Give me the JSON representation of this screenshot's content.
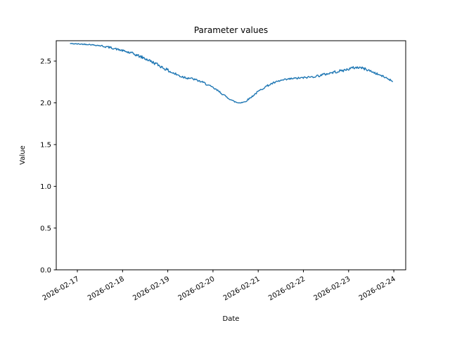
{
  "chart_data": {
    "type": "line",
    "title": "Parameter values",
    "xlabel": "Date",
    "ylabel": "Value",
    "grid": false,
    "legend": "none",
    "x_tick_labels": [
      "2026-02-17",
      "2026-02-18",
      "2026-02-19",
      "2026-02-20",
      "2026-02-21",
      "2026-02-22",
      "2026-02-23",
      "2026-02-24"
    ],
    "x_ticks_day_offset": [
      0,
      1,
      2,
      3,
      4,
      5,
      6,
      7
    ],
    "y_tick_labels": [
      "0.0",
      "0.5",
      "1.0",
      "1.5",
      "2.0",
      "2.5"
    ],
    "y_ticks": [
      0.0,
      0.5,
      1.0,
      1.5,
      2.0,
      2.5
    ],
    "xlim_day_offset": [
      -0.467,
      7.263
    ],
    "ylim": [
      0,
      2.744
    ],
    "x_tick_rotation_deg": 30,
    "axis_color": "#000000",
    "background_color": "#ffffff",
    "series": [
      {
        "name": "parameter-values",
        "color": "#1f77b4",
        "line_width": 1.4,
        "x_day_offset": [
          -0.155,
          0,
          0.25,
          0.5,
          0.75,
          1.0,
          1.25,
          1.5,
          1.75,
          1.9,
          2.1,
          2.3,
          2.5,
          2.65,
          2.8,
          3.0,
          3.15,
          3.3,
          3.45,
          3.55,
          3.7,
          3.85,
          4.0,
          4.15,
          4.3,
          4.5,
          4.75,
          5.0,
          5.25,
          5.5,
          5.7,
          5.9,
          6.1,
          6.25,
          6.4,
          6.55,
          6.7,
          6.85,
          6.97
        ],
        "values": [
          2.71,
          2.705,
          2.7,
          2.685,
          2.66,
          2.625,
          2.585,
          2.53,
          2.465,
          2.42,
          2.36,
          2.315,
          2.295,
          2.27,
          2.24,
          2.18,
          2.13,
          2.07,
          2.02,
          2.0,
          2.01,
          2.07,
          2.135,
          2.19,
          2.23,
          2.267,
          2.29,
          2.3,
          2.315,
          2.345,
          2.37,
          2.39,
          2.42,
          2.425,
          2.4,
          2.365,
          2.33,
          2.295,
          2.26
        ],
        "noise": {
          "seed": 42,
          "base_amplitude": 0.012,
          "segments": [
            {
              "from": -0.2,
              "to": 0.5,
              "amplitude": 0.006
            },
            {
              "from": 1.1,
              "to": 2.45,
              "amplitude": 0.018
            },
            {
              "from": 3.2,
              "to": 3.9,
              "amplitude": 0.009
            },
            {
              "from": 5.3,
              "to": 6.45,
              "amplitude": 0.016
            }
          ],
          "points": 459
        }
      }
    ]
  }
}
